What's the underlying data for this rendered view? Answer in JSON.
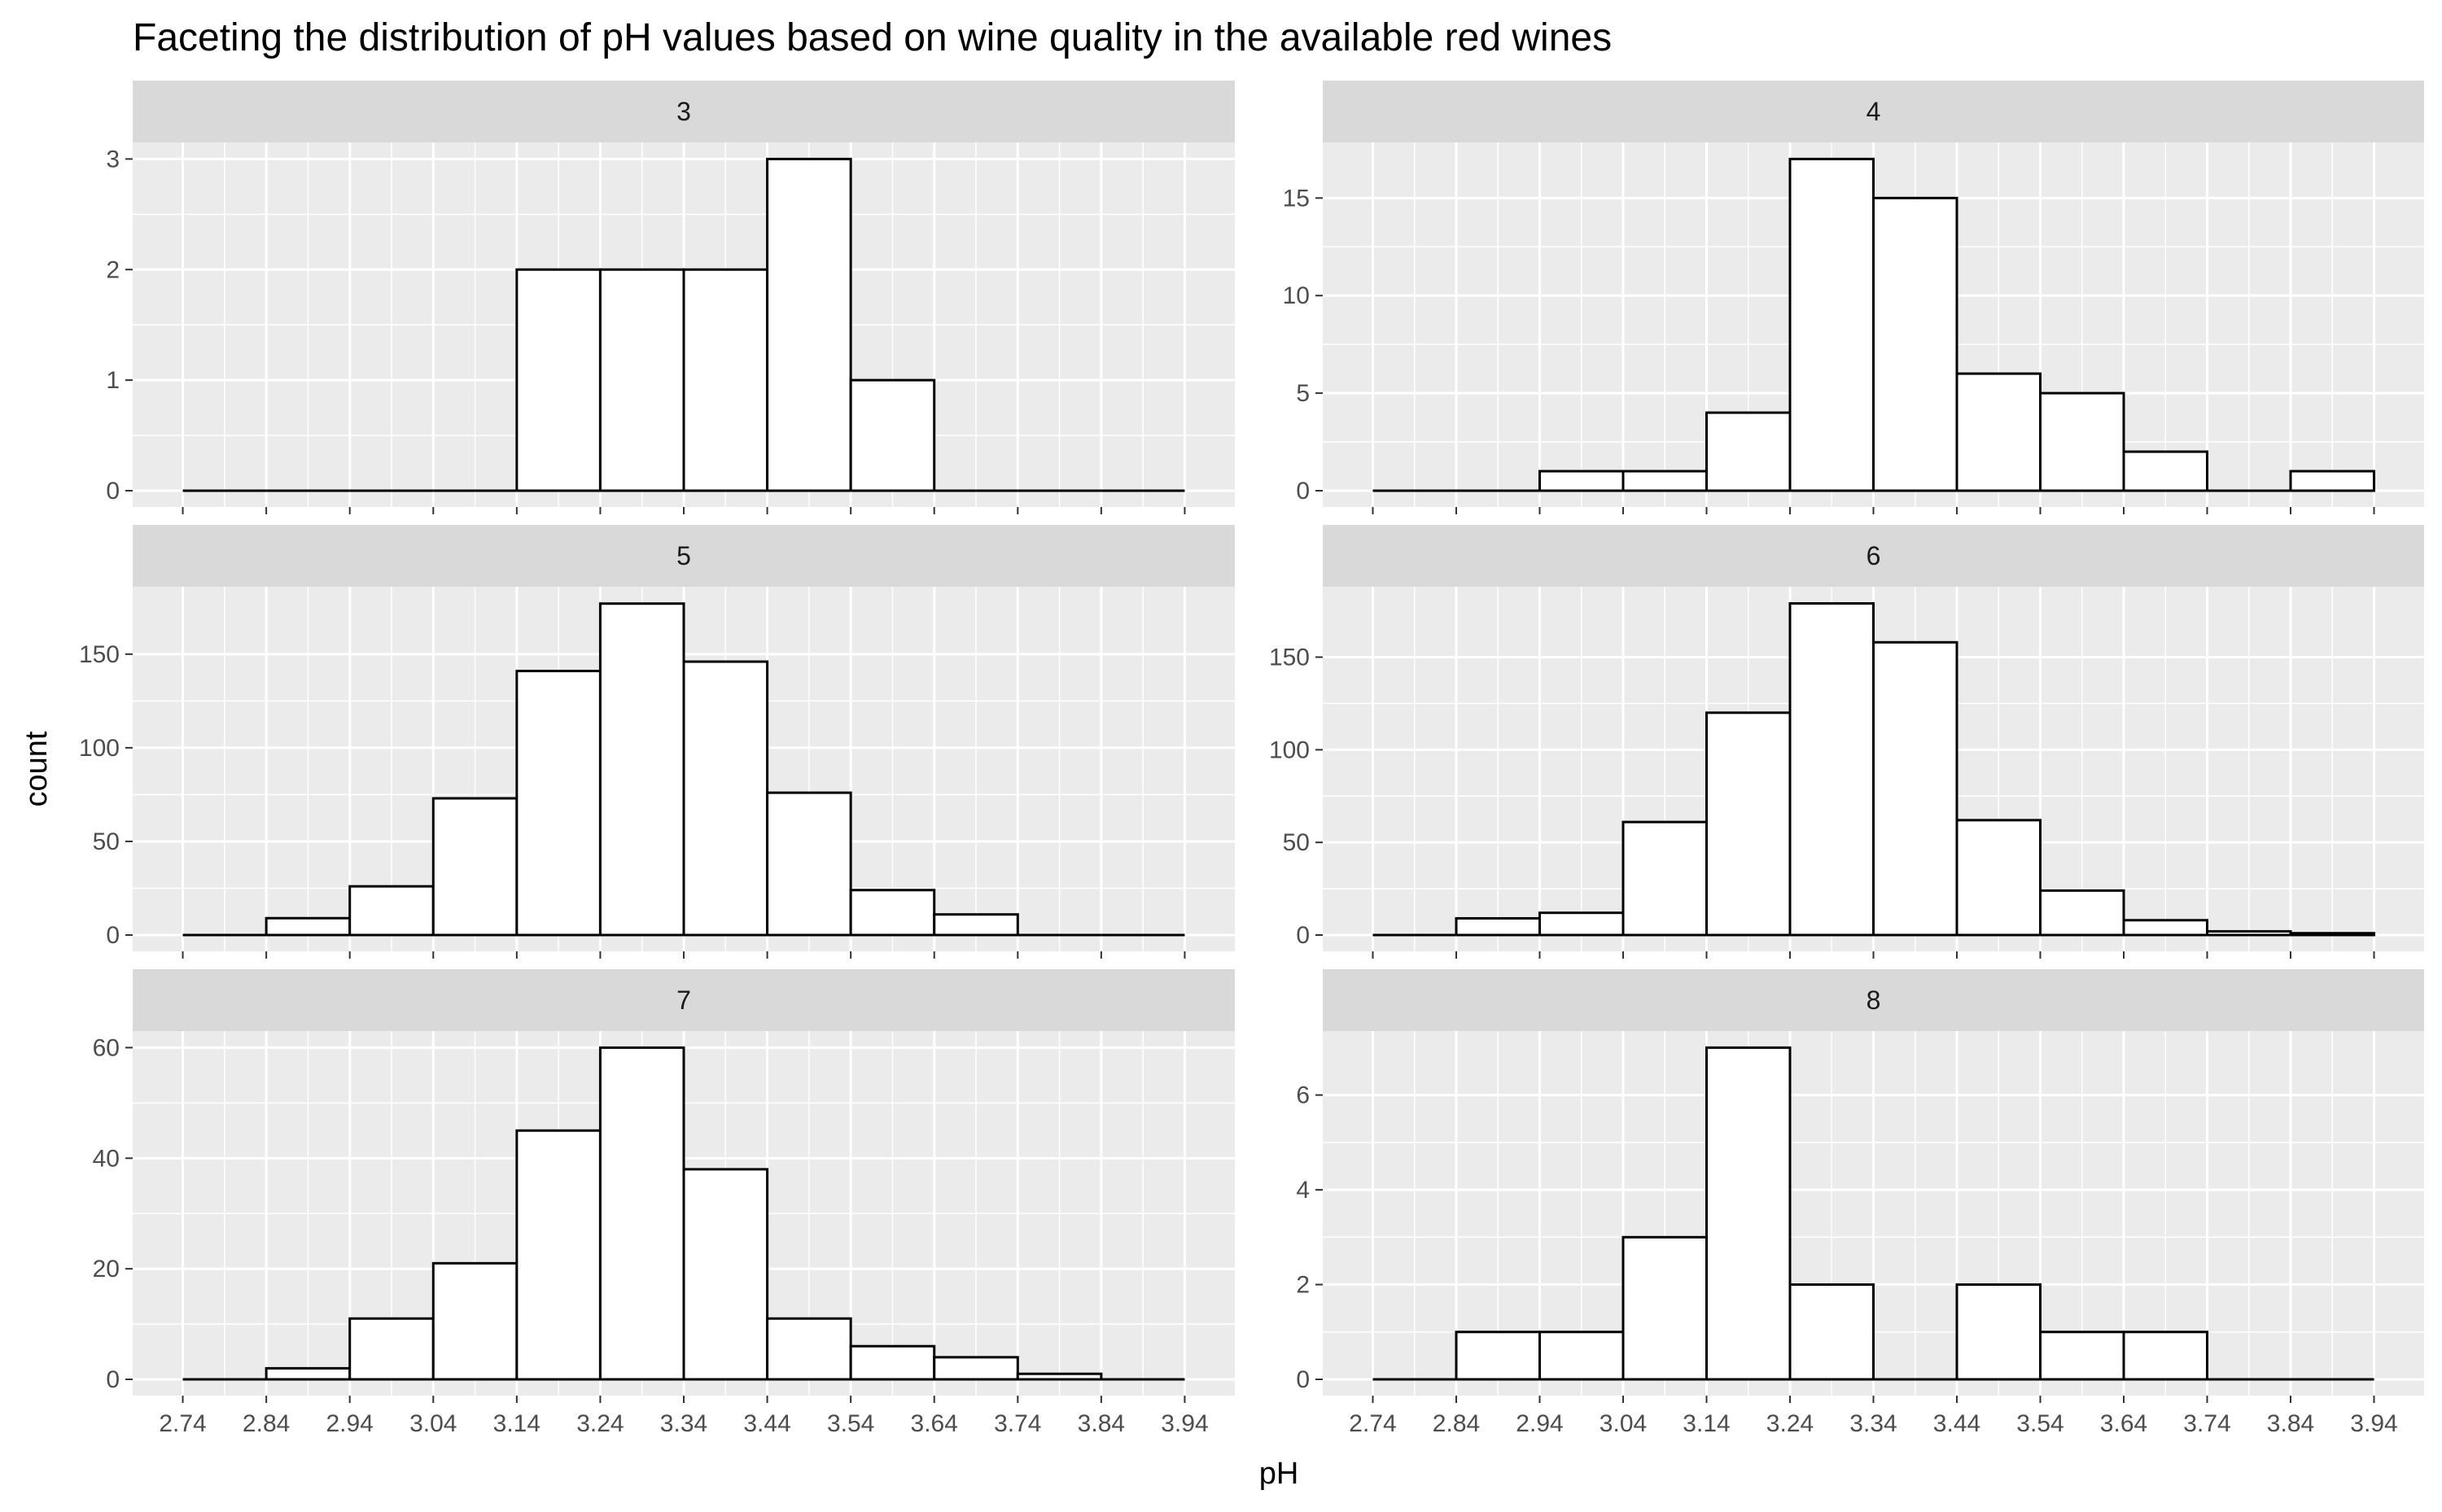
{
  "chart_data": {
    "type": "bar",
    "title": "Faceting the distribution of pH values based on wine quality in the available red wines",
    "xlabel": "pH",
    "ylabel": "count",
    "x_ticks": [
      "2.74",
      "2.84",
      "2.94",
      "3.04",
      "3.14",
      "3.24",
      "3.34",
      "3.44",
      "3.54",
      "3.64",
      "3.74",
      "3.84",
      "3.94"
    ],
    "bin_edges": [
      2.74,
      2.84,
      2.94,
      3.04,
      3.14,
      3.24,
      3.34,
      3.44,
      3.54,
      3.64,
      3.74,
      3.84,
      3.94
    ],
    "xlim": [
      2.68,
      4.0
    ],
    "grid": true,
    "colors": {
      "panel_background": "#ebebeb",
      "strip_background": "#d9d9d9",
      "grid_line": "#ffffff",
      "bar_fill": "#ffffff",
      "bar_outline": "#000000"
    },
    "facets": [
      {
        "label": "3",
        "ylim": [
          0,
          3.15
        ],
        "y_ticks": [
          0,
          1,
          2,
          3
        ],
        "values": [
          0,
          0,
          0,
          0,
          2,
          2,
          2,
          3,
          1,
          0,
          0,
          0
        ]
      },
      {
        "label": "4",
        "ylim": [
          0,
          17.85
        ],
        "y_ticks": [
          0,
          5,
          10,
          15
        ],
        "values": [
          0,
          0,
          1,
          1,
          4,
          17,
          15,
          6,
          5,
          2,
          0,
          1
        ]
      },
      {
        "label": "5",
        "ylim": [
          0,
          186
        ],
        "y_ticks": [
          0,
          50,
          100,
          150
        ],
        "values": [
          0,
          9,
          26,
          73,
          141,
          177,
          146,
          76,
          24,
          11,
          0,
          0
        ]
      },
      {
        "label": "6",
        "ylim": [
          0,
          188
        ],
        "y_ticks": [
          0,
          50,
          100,
          150
        ],
        "values": [
          0,
          9,
          12,
          61,
          120,
          179,
          158,
          62,
          24,
          8,
          2,
          1
        ]
      },
      {
        "label": "7",
        "ylim": [
          0,
          63
        ],
        "y_ticks": [
          0,
          20,
          40,
          60
        ],
        "values": [
          0,
          2,
          11,
          21,
          45,
          60,
          38,
          11,
          6,
          4,
          1,
          0
        ]
      },
      {
        "label": "8",
        "ylim": [
          0,
          7.35
        ],
        "y_ticks": [
          0,
          2,
          4,
          6
        ],
        "values": [
          0,
          1,
          1,
          3,
          7,
          2,
          0,
          2,
          1,
          1,
          0,
          0
        ]
      }
    ]
  }
}
